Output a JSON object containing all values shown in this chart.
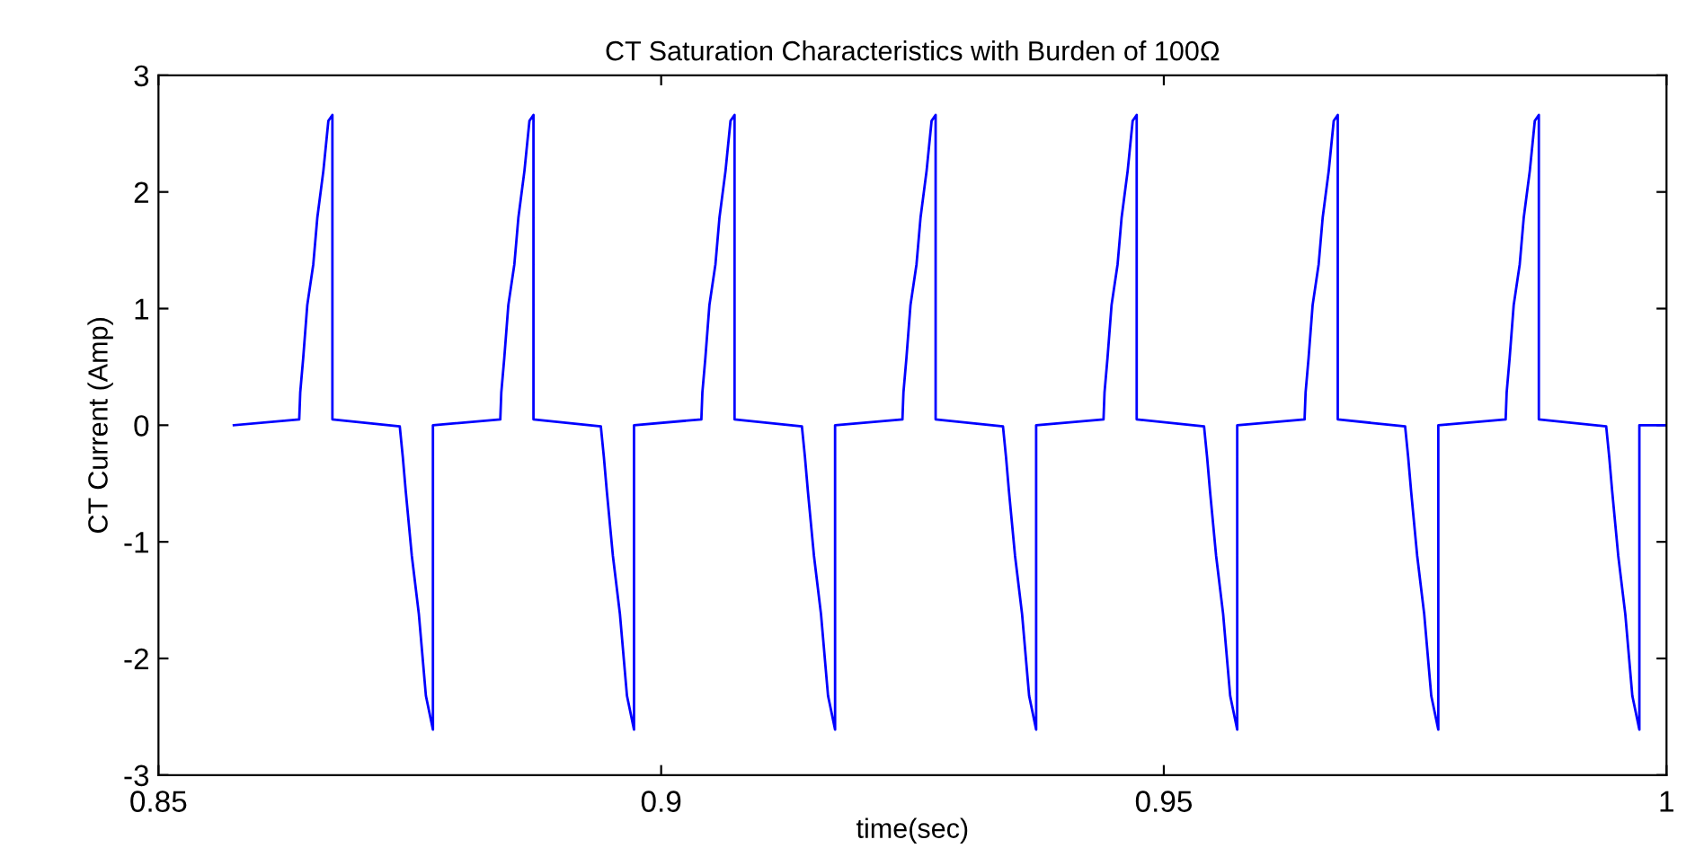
{
  "chart_data": {
    "type": "line",
    "title": "CT Saturation Characteristics with Burden of 100Ω",
    "xlabel": "time(sec)",
    "ylabel": "CT Current (Amp)",
    "x": [
      0.8575,
      0.864,
      0.8641,
      0.8644,
      0.8648,
      0.8654,
      0.8658,
      0.8664,
      0.8669,
      0.8673,
      0.8673,
      0.874,
      0.8743,
      0.8746,
      0.8752,
      0.8759,
      0.8766,
      0.8773,
      0.8773,
      0.884,
      0.8841,
      0.8844,
      0.8848,
      0.8854,
      0.8858,
      0.8864,
      0.8869,
      0.8873,
      0.8873,
      0.894,
      0.8943,
      0.8946,
      0.8952,
      0.8959,
      0.8966,
      0.8973,
      0.8973,
      0.904,
      0.9041,
      0.9044,
      0.9048,
      0.9054,
      0.9058,
      0.9064,
      0.9069,
      0.9073,
      0.9073,
      0.914,
      0.9143,
      0.9146,
      0.9152,
      0.9159,
      0.9166,
      0.9173,
      0.9173,
      0.924,
      0.9241,
      0.9244,
      0.9248,
      0.9254,
      0.9258,
      0.9264,
      0.9269,
      0.9273,
      0.9273,
      0.934,
      0.9343,
      0.9346,
      0.9352,
      0.9359,
      0.9366,
      0.9373,
      0.9373,
      0.944,
      0.9441,
      0.9444,
      0.9448,
      0.9454,
      0.9458,
      0.9464,
      0.9469,
      0.9473,
      0.9473,
      0.954,
      0.9543,
      0.9546,
      0.9552,
      0.9559,
      0.9566,
      0.9573,
      0.9573,
      0.964,
      0.9641,
      0.9644,
      0.9648,
      0.9654,
      0.9658,
      0.9664,
      0.9669,
      0.9673,
      0.9673,
      0.974,
      0.9743,
      0.9746,
      0.9752,
      0.9759,
      0.9766,
      0.9773,
      0.9773,
      0.984,
      0.9841,
      0.9844,
      0.9848,
      0.9854,
      0.9858,
      0.9864,
      0.9869,
      0.9873,
      0.9873,
      0.994,
      0.9943,
      0.9946,
      0.9952,
      0.9959,
      0.9966,
      0.9973,
      0.9973,
      1.0
    ],
    "series": [
      {
        "color": "#0000ff",
        "values": [
          0.0,
          0.05,
          0.28,
          0.58,
          1.03,
          1.38,
          1.78,
          2.18,
          2.61,
          2.66,
          0.05,
          -0.01,
          -0.27,
          -0.57,
          -1.12,
          -1.62,
          -2.32,
          -2.61,
          0.0,
          0.05,
          0.28,
          0.58,
          1.03,
          1.38,
          1.78,
          2.18,
          2.61,
          2.66,
          0.05,
          -0.01,
          -0.27,
          -0.57,
          -1.12,
          -1.62,
          -2.32,
          -2.61,
          0.0,
          0.05,
          0.28,
          0.58,
          1.03,
          1.38,
          1.78,
          2.18,
          2.61,
          2.66,
          0.05,
          -0.01,
          -0.27,
          -0.57,
          -1.12,
          -1.62,
          -2.32,
          -2.61,
          0.0,
          0.05,
          0.28,
          0.58,
          1.03,
          1.38,
          1.78,
          2.18,
          2.61,
          2.66,
          0.05,
          -0.01,
          -0.27,
          -0.57,
          -1.12,
          -1.62,
          -2.32,
          -2.61,
          0.0,
          0.05,
          0.28,
          0.58,
          1.03,
          1.38,
          1.78,
          2.18,
          2.61,
          2.66,
          0.05,
          -0.01,
          -0.27,
          -0.57,
          -1.12,
          -1.62,
          -2.32,
          -2.61,
          0.0,
          0.05,
          0.28,
          0.58,
          1.03,
          1.38,
          1.78,
          2.18,
          2.61,
          2.66,
          0.05,
          -0.01,
          -0.27,
          -0.57,
          -1.12,
          -1.62,
          -2.32,
          -2.61,
          0.0,
          0.05,
          0.28,
          0.58,
          1.03,
          1.38,
          1.78,
          2.18,
          2.61,
          2.66,
          0.05,
          -0.01,
          -0.27,
          -0.57,
          -1.12,
          -1.62,
          -2.32,
          -2.61,
          0.0,
          0.0
        ]
      }
    ],
    "xlim": [
      0.85,
      1.0
    ],
    "xticks": [
      0.85,
      0.9,
      0.95,
      1
    ],
    "ylim": [
      -3,
      3
    ],
    "yticks": [
      -3,
      -2,
      -1,
      0,
      1,
      2,
      3
    ],
    "grid": false,
    "legend": false
  }
}
